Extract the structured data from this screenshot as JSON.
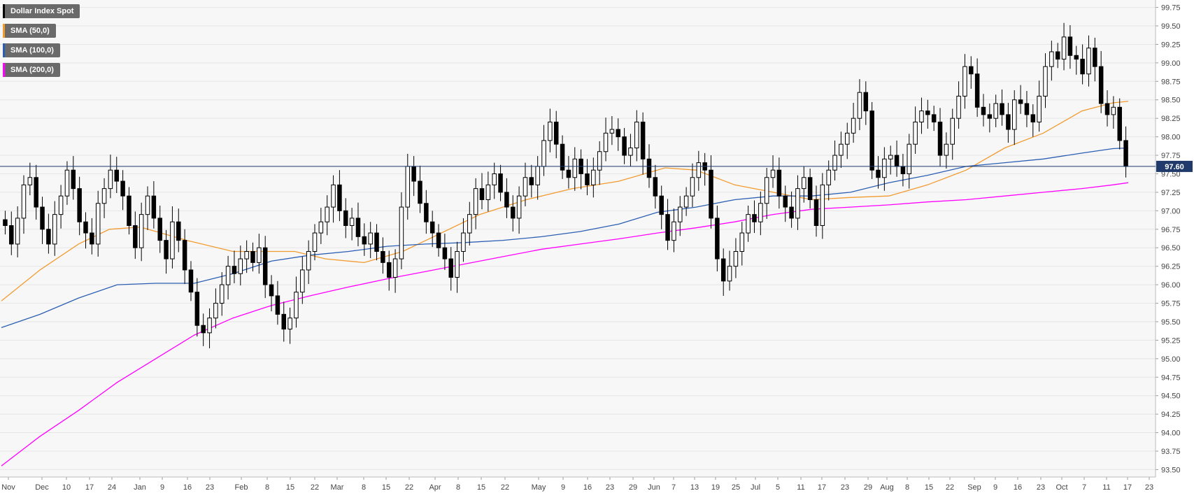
{
  "legend": {
    "items": [
      {
        "label": "Dollar Index Spot",
        "color": "#000000"
      },
      {
        "label": "SMA (50,0)",
        "color": "#f29b30"
      },
      {
        "label": "SMA (100,0)",
        "color": "#2c5fb3"
      },
      {
        "label": "SMA (200,0)",
        "color": "#ff00ff"
      }
    ]
  },
  "current_price": {
    "label": "97.60",
    "value": 97.6
  },
  "chart_data": {
    "type": "candlestick",
    "title": "",
    "xlabel": "",
    "ylabel": "",
    "ylim": [
      93.4,
      99.85
    ],
    "y_ticks": [
      "93.50",
      "93.75",
      "94.00",
      "94.25",
      "94.50",
      "94.75",
      "95.00",
      "95.25",
      "95.50",
      "95.75",
      "96.00",
      "96.25",
      "96.50",
      "96.75",
      "97.00",
      "97.25",
      "97.50",
      "97.75",
      "98.00",
      "98.25",
      "98.50",
      "98.75",
      "99.00",
      "99.25",
      "99.50",
      "99.75"
    ],
    "x_ticks": [
      "Nov",
      "Dec",
      "10",
      "17",
      "24",
      "Jan",
      "9",
      "16",
      "23",
      "Feb",
      "8",
      "15",
      "22",
      "Mar",
      "8",
      "15",
      "22",
      "Apr",
      "8",
      "15",
      "22",
      "May",
      "9",
      "16",
      "23",
      "29",
      "Jun",
      "7",
      "13",
      "19",
      "25",
      "Jul",
      "5",
      "11",
      "17",
      "23",
      "29",
      "Aug",
      "8",
      "15",
      "22",
      "Sep",
      "9",
      "16",
      "23",
      "Oct",
      "7",
      "11",
      "17",
      "23"
    ],
    "grid": true,
    "legend_position": "top-left",
    "close": [
      96.8,
      96.55,
      96.9,
      97.35,
      97.45,
      97.05,
      96.75,
      96.55,
      96.95,
      97.2,
      97.55,
      97.3,
      96.85,
      96.7,
      96.55,
      97.1,
      97.3,
      97.55,
      97.4,
      97.2,
      96.8,
      96.5,
      96.95,
      97.2,
      96.9,
      96.6,
      96.35,
      96.85,
      96.6,
      96.2,
      95.9,
      95.45,
      95.35,
      95.55,
      95.75,
      96.0,
      96.25,
      96.15,
      96.35,
      96.45,
      96.3,
      96.5,
      96.0,
      95.85,
      95.6,
      95.4,
      95.55,
      95.9,
      96.2,
      96.45,
      96.7,
      96.85,
      97.05,
      97.35,
      97.0,
      96.8,
      96.9,
      96.65,
      96.55,
      96.7,
      96.45,
      96.3,
      96.1,
      96.35,
      97.05,
      97.6,
      97.4,
      97.1,
      96.85,
      96.7,
      96.5,
      96.35,
      96.1,
      96.45,
      96.7,
      96.95,
      97.3,
      97.15,
      97.35,
      97.5,
      97.25,
      97.05,
      96.9,
      97.2,
      97.45,
      97.35,
      97.6,
      97.95,
      98.2,
      97.9,
      97.55,
      97.45,
      97.7,
      97.5,
      97.35,
      97.55,
      97.8,
      98.05,
      98.1,
      98.0,
      97.75,
      97.85,
      98.2,
      97.7,
      97.45,
      97.2,
      96.95,
      96.6,
      96.85,
      97.05,
      97.2,
      97.45,
      97.65,
      97.55,
      96.9,
      96.35,
      96.05,
      96.25,
      96.45,
      96.7,
      96.95,
      96.85,
      97.1,
      97.45,
      97.55,
      97.2,
      97.05,
      96.9,
      97.3,
      97.45,
      97.15,
      96.8,
      97.35,
      97.55,
      97.75,
      97.9,
      98.05,
      98.25,
      98.6,
      98.35,
      97.55,
      97.45,
      97.7,
      97.75,
      97.6,
      97.5,
      97.9,
      98.2,
      98.35,
      98.3,
      98.2,
      97.75,
      97.9,
      98.25,
      98.55,
      98.95,
      98.85,
      98.4,
      98.3,
      98.25,
      98.45,
      98.3,
      98.1,
      98.5,
      98.45,
      98.3,
      98.2,
      98.55,
      98.95,
      99.15,
      99.05,
      99.35,
      99.1,
      99.05,
      98.85,
      99.2,
      98.95,
      98.45,
      98.3,
      98.4,
      97.95,
      97.6
    ],
    "series": [
      {
        "name": "SMA (50,0)",
        "x": [
          0,
          50,
          100,
          140,
          180,
          240,
          300,
          340,
          380,
          420,
          470,
          520,
          560,
          620,
          680,
          740,
          800,
          860,
          900,
          950,
          1000,
          1050,
          1100,
          1150,
          1200,
          1250,
          1300,
          1350,
          1400,
          1440,
          1460
        ],
        "values": [
          95.78,
          96.2,
          96.55,
          96.75,
          96.78,
          96.6,
          96.45,
          96.45,
          96.45,
          96.35,
          96.3,
          96.45,
          96.65,
          96.95,
          97.15,
          97.3,
          97.4,
          97.58,
          97.55,
          97.35,
          97.25,
          97.15,
          97.18,
          97.2,
          97.35,
          97.55,
          97.85,
          98.05,
          98.35,
          98.46,
          98.48
        ]
      },
      {
        "name": "SMA (100,0)",
        "x": [
          0,
          50,
          100,
          150,
          200,
          250,
          300,
          350,
          400,
          450,
          500,
          550,
          600,
          650,
          700,
          750,
          800,
          850,
          900,
          950,
          1000,
          1050,
          1100,
          1150,
          1200,
          1250,
          1300,
          1350,
          1400,
          1440,
          1460
        ],
        "values": [
          95.42,
          95.6,
          95.82,
          96.0,
          96.02,
          96.02,
          96.15,
          96.32,
          96.4,
          96.45,
          96.52,
          96.55,
          96.57,
          96.6,
          96.65,
          96.72,
          96.82,
          96.98,
          97.05,
          97.15,
          97.2,
          97.2,
          97.25,
          97.38,
          97.48,
          97.6,
          97.65,
          97.7,
          97.78,
          97.84,
          97.85
        ]
      },
      {
        "name": "SMA (200,0)",
        "x": [
          0,
          50,
          100,
          150,
          200,
          250,
          300,
          350,
          400,
          450,
          500,
          550,
          600,
          650,
          700,
          750,
          800,
          850,
          900,
          950,
          1000,
          1050,
          1100,
          1150,
          1200,
          1250,
          1300,
          1350,
          1400,
          1440,
          1460
        ],
        "values": [
          93.55,
          93.95,
          94.3,
          94.68,
          95.0,
          95.32,
          95.55,
          95.72,
          95.85,
          95.97,
          96.08,
          96.18,
          96.28,
          96.38,
          96.48,
          96.55,
          96.62,
          96.7,
          96.77,
          96.85,
          96.95,
          97.02,
          97.05,
          97.08,
          97.12,
          97.15,
          97.2,
          97.25,
          97.3,
          97.35,
          97.38
        ]
      }
    ]
  }
}
